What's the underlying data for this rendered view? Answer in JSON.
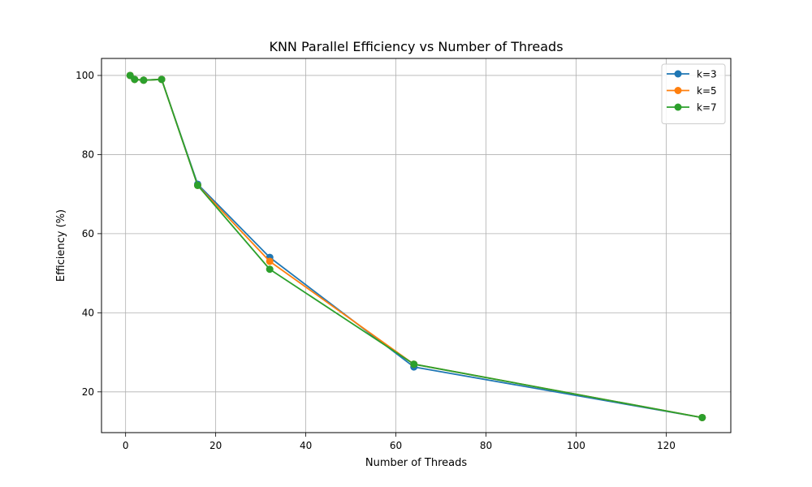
{
  "chart_data": {
    "type": "line",
    "title": "KNN Parallel Efficiency vs Number of Threads",
    "xlabel": "Number of Threads",
    "ylabel": "Efficiency (%)",
    "xlim": [
      -5.35,
      134.35
    ],
    "ylim": [
      9.7,
      104.3
    ],
    "xticks": [
      0,
      20,
      40,
      60,
      80,
      100,
      120
    ],
    "yticks": [
      20,
      40,
      60,
      80,
      100
    ],
    "grid": true,
    "legend_position": "top-right",
    "x": [
      1,
      2,
      4,
      8,
      16,
      32,
      64,
      128
    ],
    "series": [
      {
        "name": "k=3",
        "color": "#1f77b4",
        "marker": "circle",
        "values": [
          100,
          99.0,
          98.8,
          99.0,
          72.5,
          54.0,
          26.3,
          13.5
        ]
      },
      {
        "name": "k=5",
        "color": "#ff7f0e",
        "marker": "circle",
        "values": [
          100,
          99.0,
          98.8,
          99.0,
          72.2,
          53.0,
          27.0,
          13.5
        ]
      },
      {
        "name": "k=7",
        "color": "#2ca02c",
        "marker": "circle",
        "values": [
          100,
          99.0,
          98.8,
          99.0,
          72.2,
          51.0,
          27.0,
          13.5
        ]
      }
    ]
  }
}
